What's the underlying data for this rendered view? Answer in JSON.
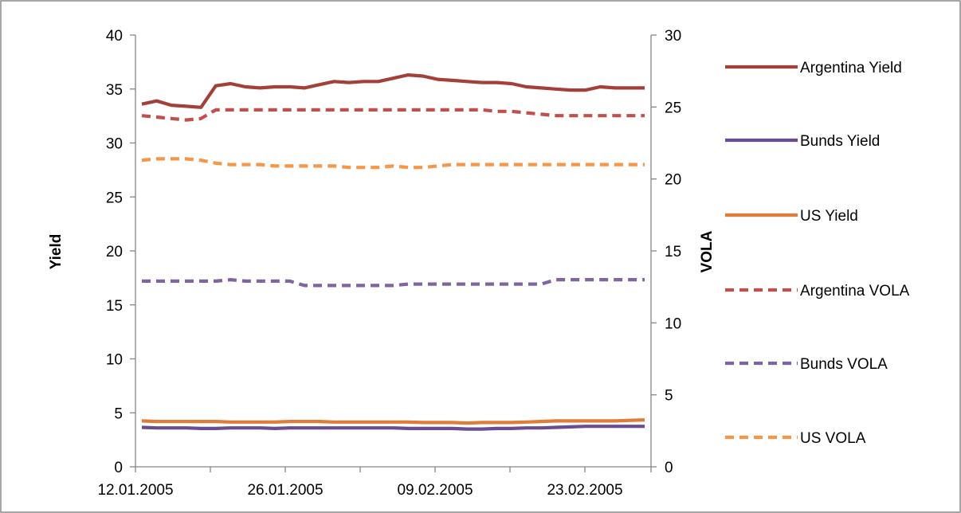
{
  "chart_data": {
    "type": "line",
    "ylabel": "Yield",
    "y2label": "VOLA",
    "ylim": [
      0,
      40
    ],
    "y2lim": [
      0,
      30
    ],
    "yticks": [
      "0",
      "5",
      "10",
      "15",
      "20",
      "25",
      "30",
      "35",
      "40"
    ],
    "y2ticks": [
      "0",
      "5",
      "10",
      "15",
      "20",
      "25",
      "30"
    ],
    "x_tick_labels": [
      "12.01.2005",
      "26.01.2005",
      "09.02.2005",
      "23.02.2005"
    ],
    "x": [
      "11.01.2005",
      "12.01.2005",
      "13.01.2005",
      "14.01.2005",
      "17.01.2005",
      "18.01.2005",
      "19.01.2005",
      "20.01.2005",
      "21.01.2005",
      "24.01.2005",
      "25.01.2005",
      "26.01.2005",
      "27.01.2005",
      "28.01.2005",
      "31.01.2005",
      "01.02.2005",
      "02.02.2005",
      "03.02.2005",
      "04.02.2005",
      "07.02.2005",
      "08.02.2005",
      "09.02.2005",
      "10.02.2005",
      "11.02.2005",
      "14.02.2005",
      "15.02.2005",
      "16.02.2005",
      "17.02.2005",
      "18.02.2005",
      "21.02.2005",
      "22.02.2005",
      "23.02.2005",
      "24.02.2005",
      "25.02.2005",
      "28.02.2005"
    ],
    "grid": false,
    "legend_position": "right",
    "series": [
      {
        "name": "Argentina Yield",
        "axis": "left",
        "style": "solid",
        "color": "#a4403a",
        "values": [
          33.6,
          33.9,
          33.5,
          33.4,
          33.3,
          35.3,
          35.5,
          35.2,
          35.1,
          35.2,
          35.2,
          35.1,
          35.4,
          35.7,
          35.6,
          35.7,
          35.7,
          36.0,
          36.3,
          36.2,
          35.9,
          35.8,
          35.7,
          35.6,
          35.6,
          35.5,
          35.2,
          35.1,
          35.0,
          34.9,
          34.9,
          35.2,
          35.1,
          35.1,
          35.1
        ]
      },
      {
        "name": "Bunds Yield",
        "axis": "left",
        "style": "solid",
        "color": "#6a4c93",
        "values": [
          3.65,
          3.6,
          3.6,
          3.6,
          3.55,
          3.55,
          3.6,
          3.6,
          3.6,
          3.55,
          3.6,
          3.6,
          3.6,
          3.6,
          3.6,
          3.6,
          3.6,
          3.6,
          3.55,
          3.55,
          3.55,
          3.55,
          3.5,
          3.5,
          3.55,
          3.55,
          3.6,
          3.6,
          3.65,
          3.7,
          3.75,
          3.75,
          3.75,
          3.75,
          3.75
        ]
      },
      {
        "name": "US Yield",
        "axis": "left",
        "style": "solid",
        "color": "#e07b39",
        "values": [
          4.25,
          4.2,
          4.2,
          4.2,
          4.2,
          4.2,
          4.15,
          4.15,
          4.15,
          4.15,
          4.2,
          4.2,
          4.2,
          4.15,
          4.15,
          4.15,
          4.15,
          4.15,
          4.15,
          4.1,
          4.1,
          4.1,
          4.05,
          4.1,
          4.1,
          4.1,
          4.15,
          4.2,
          4.25,
          4.25,
          4.25,
          4.25,
          4.25,
          4.3,
          4.35
        ]
      },
      {
        "name": "Argentina VOLA",
        "axis": "right",
        "style": "dashed",
        "color": "#c0504d",
        "values": [
          24.4,
          24.3,
          24.2,
          24.1,
          24.2,
          24.8,
          24.8,
          24.8,
          24.8,
          24.8,
          24.8,
          24.8,
          24.8,
          24.8,
          24.8,
          24.8,
          24.8,
          24.8,
          24.8,
          24.8,
          24.8,
          24.8,
          24.8,
          24.8,
          24.7,
          24.7,
          24.6,
          24.5,
          24.4,
          24.4,
          24.4,
          24.4,
          24.4,
          24.4,
          24.4
        ]
      },
      {
        "name": "Bunds VOLA",
        "axis": "right",
        "style": "dashed",
        "color": "#8064a2",
        "values": [
          12.9,
          12.9,
          12.9,
          12.9,
          12.9,
          12.9,
          13.0,
          12.9,
          12.9,
          12.9,
          12.9,
          12.6,
          12.6,
          12.6,
          12.6,
          12.6,
          12.6,
          12.6,
          12.7,
          12.7,
          12.7,
          12.7,
          12.7,
          12.7,
          12.7,
          12.7,
          12.7,
          12.7,
          13.0,
          13.0,
          13.0,
          13.0,
          13.0,
          13.0,
          13.0
        ]
      },
      {
        "name": "US VOLA",
        "axis": "right",
        "style": "dashed",
        "color": "#f79646",
        "values": [
          21.3,
          21.4,
          21.4,
          21.4,
          21.3,
          21.1,
          21.0,
          21.0,
          21.0,
          20.9,
          20.9,
          20.9,
          20.9,
          20.9,
          20.8,
          20.8,
          20.8,
          20.9,
          20.8,
          20.8,
          20.9,
          21.0,
          21.0,
          21.0,
          21.0,
          21.0,
          21.0,
          21.0,
          21.0,
          21.0,
          21.0,
          21.0,
          21.0,
          21.0,
          21.0
        ]
      }
    ]
  }
}
